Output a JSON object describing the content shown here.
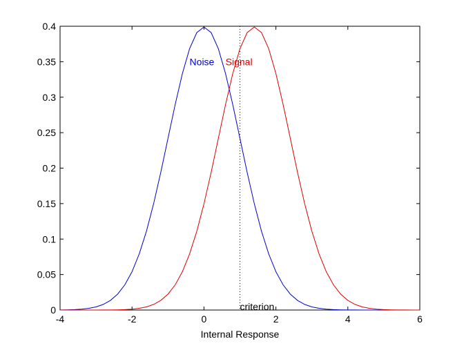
{
  "chart_data": {
    "type": "line",
    "title": "",
    "xlabel": "Internal Response",
    "ylabel": "",
    "xlim": [
      -4,
      6
    ],
    "ylim": [
      0,
      0.4
    ],
    "xticks": [
      -4,
      -2,
      0,
      2,
      4,
      6
    ],
    "xtick_labels": [
      "-4",
      "-2",
      "0",
      "2",
      "4",
      "6"
    ],
    "yticks": [
      0,
      0.05,
      0.1,
      0.15,
      0.2,
      0.25,
      0.3,
      0.35,
      0.4
    ],
    "ytick_labels": [
      "0",
      "0.05",
      "0.1",
      "0.15",
      "0.2",
      "0.25",
      "0.3",
      "0.35",
      "0.4"
    ],
    "grid": false,
    "x": [
      -4,
      -3.8,
      -3.6,
      -3.4,
      -3.2,
      -3,
      -2.8,
      -2.6,
      -2.4,
      -2.2,
      -2,
      -1.8,
      -1.6,
      -1.4,
      -1.2,
      -1,
      -0.8,
      -0.6,
      -0.4,
      -0.2,
      0,
      0.2,
      0.4,
      0.6,
      0.8,
      1,
      1.2,
      1.4,
      1.6,
      1.8,
      2,
      2.2,
      2.4,
      2.6,
      2.8,
      3,
      3.2,
      3.4,
      3.6,
      3.8,
      4,
      4.2,
      4.4,
      4.6,
      4.8,
      5,
      5.2,
      5.4,
      5.6,
      5.8,
      6
    ],
    "series": [
      {
        "name": "Noise",
        "color": "#0000cc",
        "values": [
          0.0001,
          0.0003,
          0.0006,
          0.0012,
          0.0024,
          0.0044,
          0.0079,
          0.0136,
          0.0224,
          0.0355,
          0.054,
          0.079,
          0.1109,
          0.1497,
          0.1942,
          0.242,
          0.2897,
          0.3332,
          0.3683,
          0.391,
          0.3989,
          0.391,
          0.3683,
          0.3332,
          0.2897,
          0.242,
          0.1942,
          0.1497,
          0.1109,
          0.079,
          0.054,
          0.0355,
          0.0224,
          0.0136,
          0.0079,
          0.0044,
          0.0024,
          0.0012,
          0.0006,
          0.0003,
          0.0001,
          0.0001,
          0,
          0,
          0,
          0,
          0,
          0,
          0,
          0,
          0
        ]
      },
      {
        "name": "Signal",
        "color": "#dd0000",
        "values": [
          0,
          0,
          0,
          0,
          0,
          0,
          0.0001,
          0.0001,
          0.0003,
          0.0006,
          0.0012,
          0.0024,
          0.0044,
          0.0079,
          0.0136,
          0.0224,
          0.0355,
          0.054,
          0.079,
          0.1109,
          0.1497,
          0.1942,
          0.242,
          0.2897,
          0.3332,
          0.3683,
          0.391,
          0.3989,
          0.391,
          0.3683,
          0.3332,
          0.2897,
          0.242,
          0.1942,
          0.1497,
          0.1109,
          0.079,
          0.054,
          0.0355,
          0.0224,
          0.0136,
          0.0079,
          0.0044,
          0.0024,
          0.0012,
          0.0006,
          0.0003,
          0.0001,
          0.0001,
          0,
          0
        ]
      }
    ],
    "annotations": [
      {
        "text": "Noise",
        "color": "#0000cc",
        "x": -0.4,
        "y": 0.35
      },
      {
        "text": "Signal",
        "color": "#dd0000",
        "x": 0.6,
        "y": 0.35
      },
      {
        "text": "criterion",
        "color": "#000000",
        "x": 1.0,
        "y": 0.005
      }
    ],
    "criterion_line": {
      "x": 1.0,
      "style": "dotted",
      "color": "#000000"
    }
  }
}
